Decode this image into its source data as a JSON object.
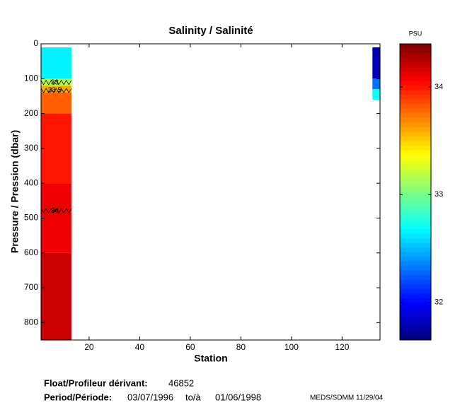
{
  "chart_data": {
    "type": "heatmap",
    "title": "Salinity / Salinité",
    "x_label": "Station",
    "y_label": "Pressure / Pression (dbar)",
    "xlim": [
      1,
      135
    ],
    "ylim": [
      0,
      850
    ],
    "y_reversed": true,
    "xticks": [
      20,
      40,
      60,
      80,
      100,
      120
    ],
    "yticks": [
      0,
      100,
      200,
      300,
      400,
      500,
      600,
      700,
      800
    ],
    "colormap": "jet",
    "colorbar_label": "PSU",
    "clim": [
      31.65,
      34.4
    ],
    "cticks": [
      32,
      33,
      34
    ],
    "blocks": [
      {
        "stations": [
          1,
          13
        ],
        "pressure": [
          10,
          100,
          120,
          140,
          200,
          400,
          600,
          850
        ],
        "values": [
          32.65,
          33.2,
          33.6,
          33.8,
          34.0,
          34.1,
          34.2
        ]
      },
      {
        "stations": [
          132,
          135
        ],
        "pressure": [
          10,
          100,
          130,
          160
        ],
        "values": [
          31.8,
          32.3,
          32.7
        ]
      }
    ],
    "contours": [
      {
        "level": 33,
        "pressure": 111
      },
      {
        "level": 33.5,
        "pressure": 134
      },
      {
        "level": 34,
        "pressure": 479
      }
    ]
  },
  "footer": {
    "float_label": "Float/Profileur dérivant:",
    "float_id": "46852",
    "period_label": "Period/Période:",
    "period_start": "03/07/1996",
    "period_sep": "to/à",
    "period_end": "01/06/1998",
    "credit": "MEDS/SDMM  11/29/04"
  }
}
